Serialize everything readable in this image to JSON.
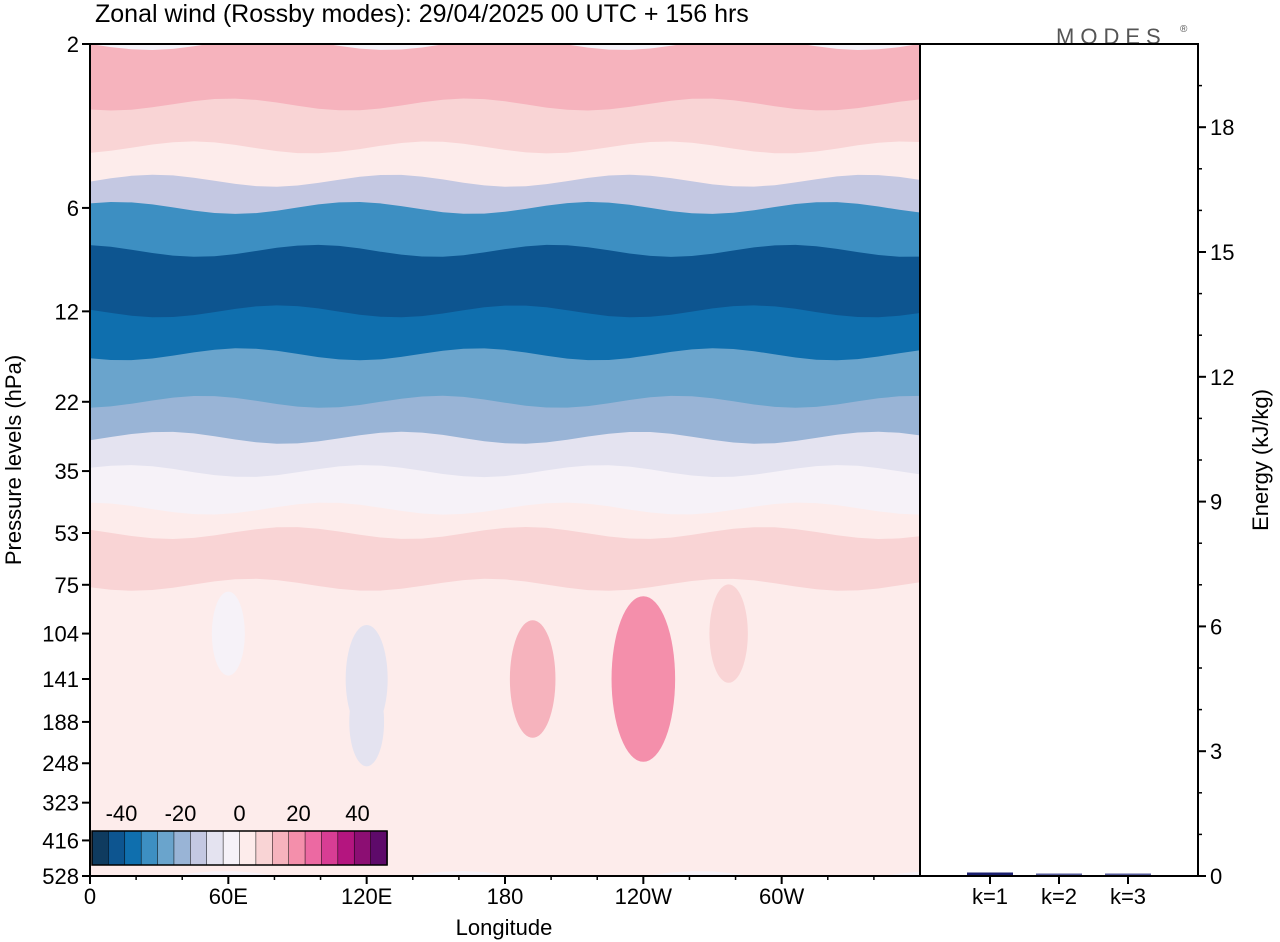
{
  "title": "Zonal wind (Rossby modes):  29/04/2025  00 UTC  + 156 hrs",
  "brand": "MODES",
  "brand_mark": "®",
  "colors": {
    "frame": "#000000",
    "bar_fill": "#1a1f6e",
    "bar_fill_light": "#5a5f9e"
  },
  "chart_data": [
    {
      "type": "heatmap",
      "title": "Zonal wind (Rossby modes):  29/04/2025  00 UTC  + 156 hrs",
      "xlabel": "Longitude",
      "ylabel": "Pressure levels (hPa)",
      "x_ticks": [
        "0",
        "60E",
        "120E",
        "180",
        "120W",
        "60W"
      ],
      "y_ticks": [
        "2",
        "6",
        "12",
        "22",
        "35",
        "53",
        "75",
        "104",
        "141",
        "188",
        "248",
        "323",
        "416",
        "528"
      ],
      "y_scale": "log-pressure (reversed)",
      "colorbar": {
        "tick_labels": [
          "-40",
          "-20",
          "0",
          "20",
          "40"
        ],
        "range": [
          -50,
          50
        ],
        "step": 5,
        "colors": [
          "#0f3b5f",
          "#0d5590",
          "#0f6fae",
          "#3d8fc2",
          "#6aa4cc",
          "#99b4d6",
          "#c4c8e2",
          "#e4e3f0",
          "#f6f2f8",
          "#fdeceb",
          "#f9d4d5",
          "#f6b3bd",
          "#f48fab",
          "#ec69a2",
          "#d83d94",
          "#b4157f",
          "#8c0e73",
          "#5e0a6a"
        ]
      },
      "zonal_bands_by_level": [
        {
          "level": "2",
          "value": 12
        },
        {
          "level": "3",
          "value": 8
        },
        {
          "level": "4",
          "value": 2
        },
        {
          "level": "5",
          "value": -12
        },
        {
          "level": "6",
          "value": -30
        },
        {
          "level": "8",
          "value": -40
        },
        {
          "level": "12",
          "value": -35
        },
        {
          "level": "16",
          "value": -25
        },
        {
          "level": "22",
          "value": -18
        },
        {
          "level": "28",
          "value": -8
        },
        {
          "level": "35",
          "value": -2
        },
        {
          "level": "45",
          "value": 3
        },
        {
          "level": "53",
          "value": 6
        },
        {
          "level": "75",
          "value": 4
        },
        {
          "level": "104",
          "value": 3
        },
        {
          "level": "141",
          "value": 3
        },
        {
          "level": "188",
          "value": 2
        },
        {
          "level": "248",
          "value": 2
        },
        {
          "level": "323",
          "value": 1
        },
        {
          "level": "416",
          "value": 0
        },
        {
          "level": "528",
          "value": -1
        }
      ],
      "features": [
        {
          "longitude": 240,
          "level": "141",
          "value": 22
        },
        {
          "longitude": 238,
          "level": "141",
          "value": 15
        },
        {
          "longitude": 120,
          "level": "141",
          "value": -10
        },
        {
          "longitude": 120,
          "level": "188",
          "value": -6
        },
        {
          "longitude": 60,
          "level": "104",
          "value": -5
        },
        {
          "longitude": 192,
          "level": "141",
          "value": 12
        },
        {
          "longitude": 277,
          "level": "104",
          "value": 8
        }
      ]
    },
    {
      "type": "bar",
      "categories": [
        "k=1",
        "k=2",
        "k=3"
      ],
      "values": [
        0.06,
        0.02,
        0.01
      ],
      "ylabel": "Energy (kJ/kg)",
      "y_ticks": [
        "0",
        "3",
        "6",
        "9",
        "12",
        "15",
        "18"
      ],
      "ylim": [
        0,
        20
      ]
    }
  ]
}
